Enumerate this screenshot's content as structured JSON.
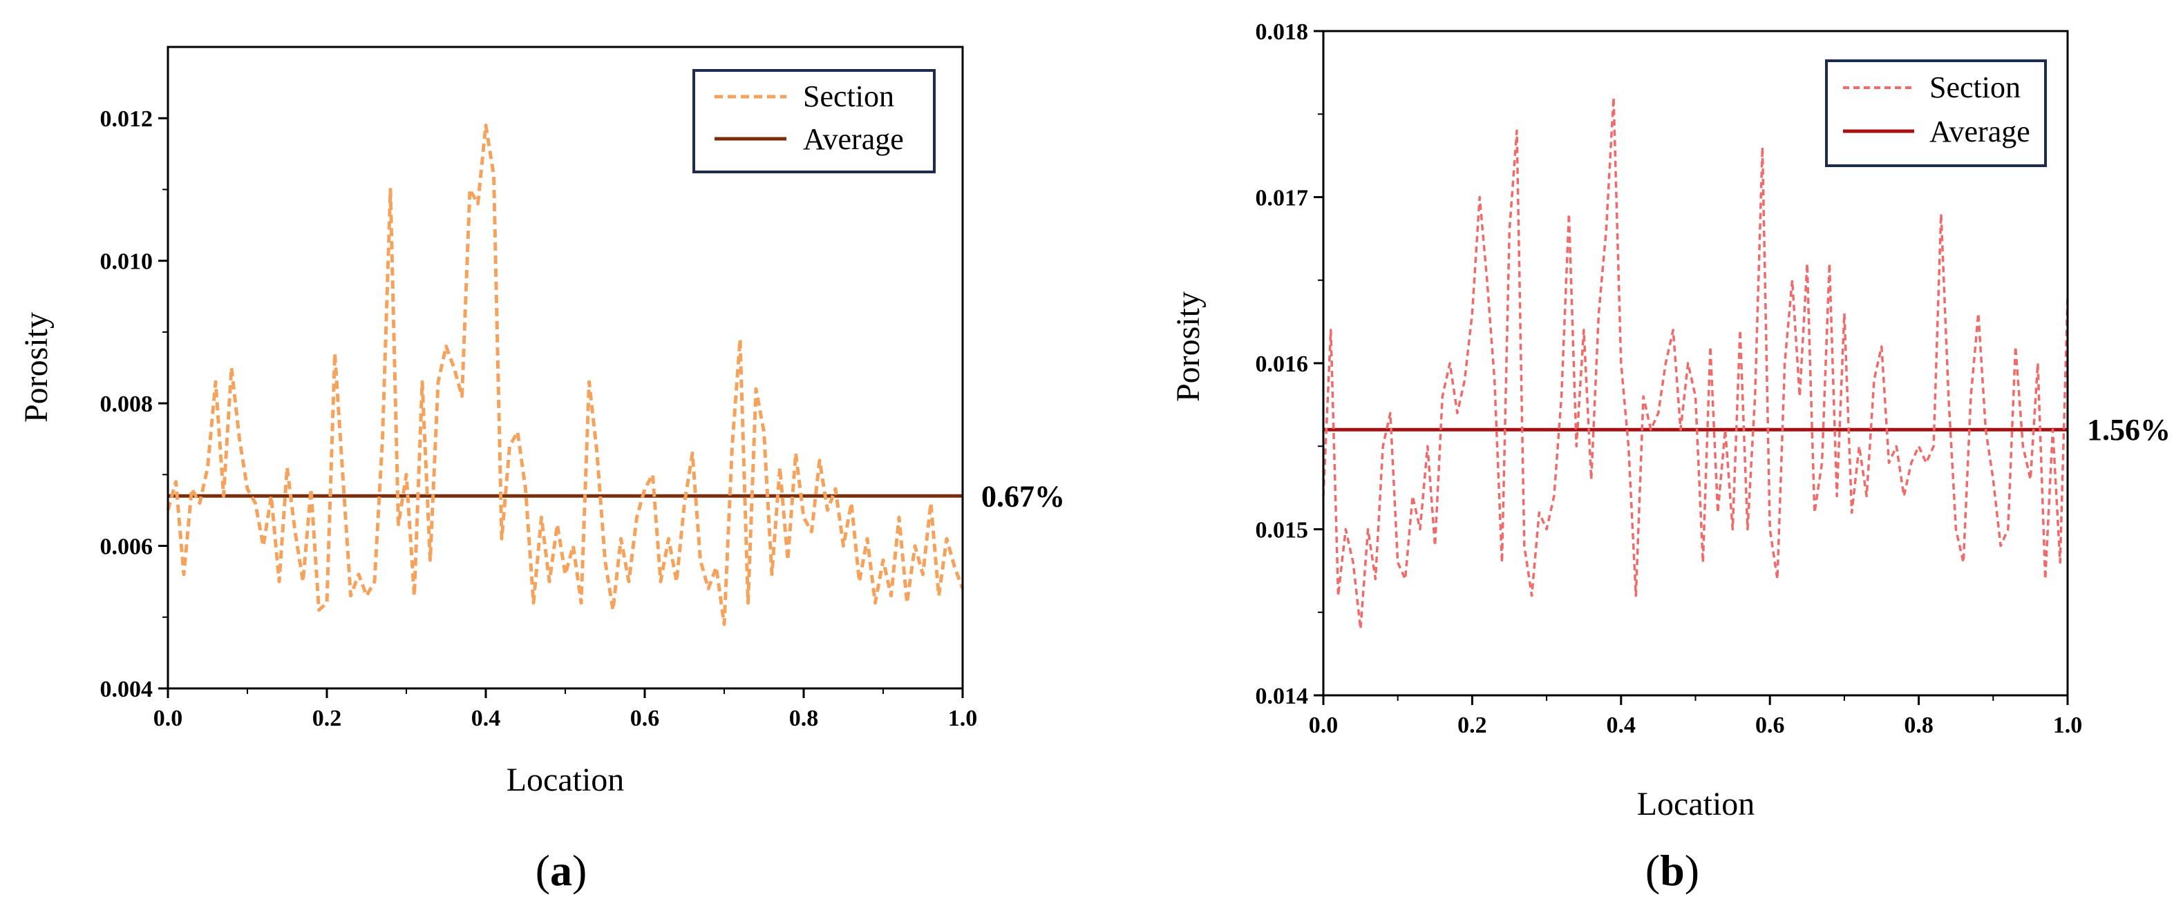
{
  "chart_data": [
    {
      "type": "line",
      "panel": "a",
      "xlabel": "Location",
      "ylabel": "Porosity",
      "xlim": [
        0,
        1
      ],
      "ylim": [
        0.004,
        0.013
      ],
      "x_ticks": [
        "0.0",
        "0.2",
        "0.4",
        "0.6",
        "0.8",
        "1.0"
      ],
      "y_ticks": [
        "0.004",
        "0.006",
        "0.008",
        "0.010",
        "0.012"
      ],
      "series": [
        {
          "name": "Section",
          "style": "dashed",
          "color": "#f5a35c",
          "x": [
            0.0,
            0.01,
            0.02,
            0.03,
            0.04,
            0.05,
            0.06,
            0.07,
            0.08,
            0.09,
            0.1,
            0.11,
            0.12,
            0.13,
            0.14,
            0.15,
            0.16,
            0.17,
            0.18,
            0.19,
            0.2,
            0.21,
            0.22,
            0.23,
            0.24,
            0.25,
            0.26,
            0.27,
            0.28,
            0.29,
            0.3,
            0.31,
            0.32,
            0.33,
            0.34,
            0.35,
            0.36,
            0.37,
            0.38,
            0.39,
            0.4,
            0.41,
            0.42,
            0.43,
            0.44,
            0.45,
            0.46,
            0.47,
            0.48,
            0.49,
            0.5,
            0.51,
            0.52,
            0.53,
            0.54,
            0.55,
            0.56,
            0.57,
            0.58,
            0.59,
            0.6,
            0.61,
            0.62,
            0.63,
            0.64,
            0.65,
            0.66,
            0.67,
            0.68,
            0.69,
            0.7,
            0.71,
            0.72,
            0.73,
            0.74,
            0.75,
            0.76,
            0.77,
            0.78,
            0.79,
            0.8,
            0.81,
            0.82,
            0.83,
            0.84,
            0.85,
            0.86,
            0.87,
            0.88,
            0.89,
            0.9,
            0.91,
            0.92,
            0.93,
            0.94,
            0.95,
            0.96,
            0.97,
            0.98,
            0.99,
            1.0
          ],
          "values": [
            0.0065,
            0.0069,
            0.0056,
            0.0068,
            0.0066,
            0.0071,
            0.0083,
            0.0067,
            0.0085,
            0.0075,
            0.0068,
            0.0066,
            0.006,
            0.0067,
            0.0055,
            0.0071,
            0.0062,
            0.0055,
            0.0068,
            0.0051,
            0.0052,
            0.0087,
            0.007,
            0.0053,
            0.0056,
            0.0053,
            0.0055,
            0.0075,
            0.011,
            0.0063,
            0.007,
            0.0053,
            0.0083,
            0.0058,
            0.0083,
            0.0088,
            0.0085,
            0.0081,
            0.011,
            0.0108,
            0.0119,
            0.0112,
            0.0061,
            0.0074,
            0.0076,
            0.0068,
            0.0052,
            0.0064,
            0.0055,
            0.0063,
            0.0056,
            0.006,
            0.0052,
            0.0083,
            0.0073,
            0.0058,
            0.0051,
            0.0061,
            0.0055,
            0.0064,
            0.0068,
            0.007,
            0.0055,
            0.0061,
            0.0055,
            0.0066,
            0.0073,
            0.0058,
            0.0054,
            0.0057,
            0.0049,
            0.0074,
            0.0089,
            0.0052,
            0.0082,
            0.0076,
            0.0056,
            0.0071,
            0.0058,
            0.0073,
            0.0064,
            0.0062,
            0.0072,
            0.0065,
            0.0068,
            0.006,
            0.0066,
            0.0055,
            0.0061,
            0.0052,
            0.0058,
            0.0053,
            0.0064,
            0.0052,
            0.006,
            0.0056,
            0.0066,
            0.0053,
            0.0061,
            0.0057,
            0.0054
          ]
        },
        {
          "name": "Average",
          "style": "solid",
          "color": "#7a2e0c",
          "value": 0.0067
        }
      ],
      "average_label": "0.67%",
      "legend": [
        "Section",
        "Average"
      ],
      "legend_position": "top-right",
      "caption_open": "(",
      "caption_letter": "a",
      "caption_close": ")"
    },
    {
      "type": "line",
      "panel": "b",
      "xlabel": "Location",
      "ylabel": "Porosity",
      "xlim": [
        0,
        1
      ],
      "ylim": [
        0.014,
        0.018
      ],
      "x_ticks": [
        "0.0",
        "0.2",
        "0.4",
        "0.6",
        "0.8",
        "1.0"
      ],
      "y_ticks": [
        "0.014",
        "0.015",
        "0.016",
        "0.017",
        "0.018"
      ],
      "series": [
        {
          "name": "Section",
          "style": "dashed",
          "color": "#f06a6a",
          "x": [
            0.0,
            0.01,
            0.02,
            0.03,
            0.04,
            0.05,
            0.06,
            0.07,
            0.08,
            0.09,
            0.1,
            0.11,
            0.12,
            0.13,
            0.14,
            0.15,
            0.16,
            0.17,
            0.18,
            0.19,
            0.2,
            0.21,
            0.22,
            0.23,
            0.24,
            0.25,
            0.26,
            0.27,
            0.28,
            0.29,
            0.3,
            0.31,
            0.32,
            0.33,
            0.34,
            0.35,
            0.36,
            0.37,
            0.38,
            0.39,
            0.4,
            0.41,
            0.42,
            0.43,
            0.44,
            0.45,
            0.46,
            0.47,
            0.48,
            0.49,
            0.5,
            0.51,
            0.52,
            0.53,
            0.54,
            0.55,
            0.56,
            0.57,
            0.58,
            0.59,
            0.6,
            0.61,
            0.62,
            0.63,
            0.64,
            0.65,
            0.66,
            0.67,
            0.68,
            0.69,
            0.7,
            0.71,
            0.72,
            0.73,
            0.74,
            0.75,
            0.76,
            0.77,
            0.78,
            0.79,
            0.8,
            0.81,
            0.82,
            0.83,
            0.84,
            0.85,
            0.86,
            0.87,
            0.88,
            0.89,
            0.9,
            0.91,
            0.92,
            0.93,
            0.94,
            0.95,
            0.96,
            0.97,
            0.98,
            0.99,
            1.0
          ],
          "values": [
            0.0152,
            0.0162,
            0.0146,
            0.015,
            0.0148,
            0.0144,
            0.015,
            0.0147,
            0.0155,
            0.0157,
            0.0148,
            0.0147,
            0.0152,
            0.015,
            0.0155,
            0.0149,
            0.0158,
            0.016,
            0.0157,
            0.0159,
            0.0163,
            0.017,
            0.0165,
            0.0159,
            0.0148,
            0.0168,
            0.0174,
            0.0149,
            0.0146,
            0.0151,
            0.015,
            0.0152,
            0.0158,
            0.0169,
            0.0155,
            0.0162,
            0.0153,
            0.0163,
            0.0168,
            0.0176,
            0.016,
            0.0155,
            0.0146,
            0.0158,
            0.0156,
            0.0157,
            0.016,
            0.0162,
            0.0156,
            0.016,
            0.0158,
            0.0148,
            0.0161,
            0.0151,
            0.0156,
            0.015,
            0.0162,
            0.015,
            0.0158,
            0.0173,
            0.015,
            0.0147,
            0.016,
            0.0165,
            0.0158,
            0.0166,
            0.0151,
            0.0154,
            0.0166,
            0.0152,
            0.0163,
            0.0151,
            0.0155,
            0.0152,
            0.0159,
            0.0161,
            0.0154,
            0.0155,
            0.0152,
            0.0154,
            0.0155,
            0.0154,
            0.0155,
            0.0169,
            0.0158,
            0.015,
            0.0148,
            0.0158,
            0.0163,
            0.0156,
            0.0153,
            0.0149,
            0.015,
            0.0161,
            0.0155,
            0.0153,
            0.016,
            0.0147,
            0.0156,
            0.0148,
            0.0164
          ]
        },
        {
          "name": "Average",
          "style": "solid",
          "color": "#a51010",
          "value": 0.0156
        }
      ],
      "average_label": "1.56%",
      "legend": [
        "Section",
        "Average"
      ],
      "legend_position": "top-right",
      "caption_open": "(",
      "caption_letter": "b",
      "caption_close": ")"
    }
  ]
}
